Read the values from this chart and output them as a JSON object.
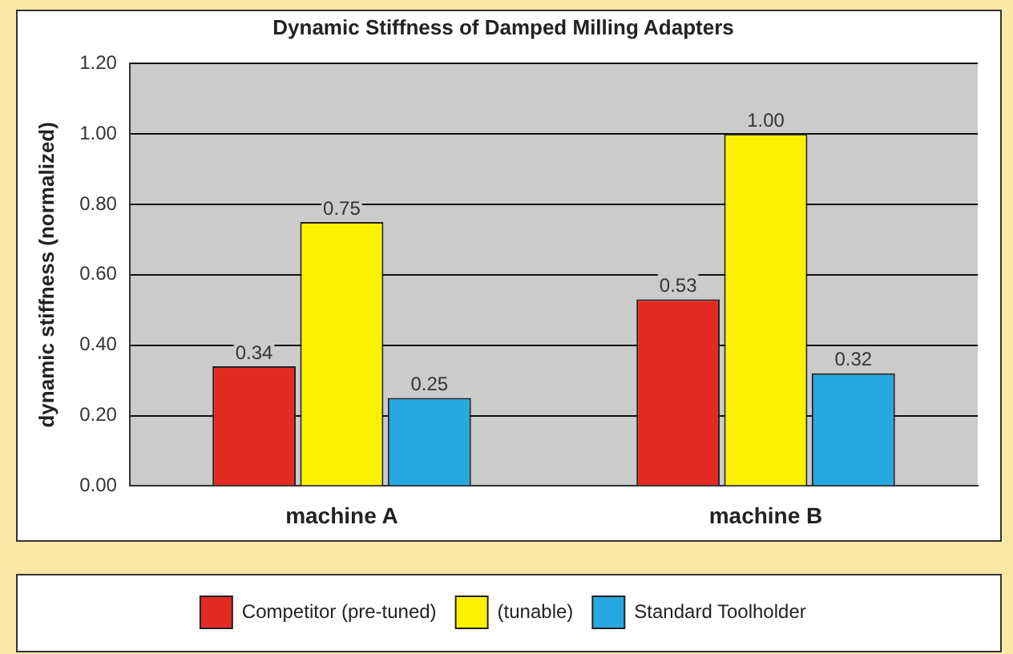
{
  "chart_data": {
    "type": "bar",
    "title": "Dynamic Stiffness of Damped Milling Adapters",
    "ylabel": "dynamic stiffness (normalized)",
    "categories": [
      "machine A",
      "machine B"
    ],
    "series": [
      {
        "name": "Competitor (pre-tuned)",
        "color": "#e32b26",
        "values": [
          0.34,
          0.53
        ],
        "value_labels": [
          "0.34",
          "0.53"
        ]
      },
      {
        "name": "(tunable)",
        "color": "#fff200",
        "values": [
          0.75,
          1.0
        ],
        "value_labels": [
          "0.75",
          "1.00"
        ]
      },
      {
        "name": "Standard Toolholder",
        "color": "#25a9e0",
        "values": [
          0.25,
          0.32
        ],
        "value_labels": [
          "0.25",
          "0.32"
        ]
      }
    ],
    "ylim": [
      0,
      1.2
    ],
    "yticks": [
      {
        "value": 0,
        "label": "0.00"
      },
      {
        "value": 0.2,
        "label": "0.20"
      },
      {
        "value": 0.4,
        "label": "0.40"
      },
      {
        "value": 0.6,
        "label": "0.60"
      },
      {
        "value": 0.8,
        "label": "0.80"
      },
      {
        "value": 1.0,
        "label": "1.00"
      },
      {
        "value": 1.2,
        "label": "1.20"
      }
    ],
    "grid": "y",
    "legend": "bottom"
  }
}
